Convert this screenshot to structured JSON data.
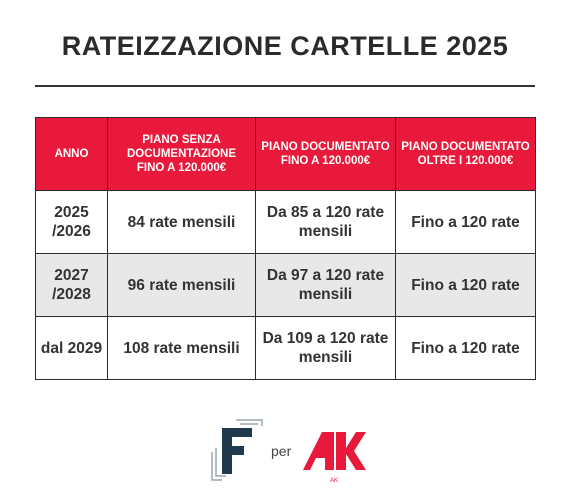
{
  "title": "RATEIZZAZIONE CARTELLE 2025",
  "table": {
    "headers": [
      "ANNO",
      "PIANO SENZA DOCUMENTAZIONE FINO A 120.000€",
      "PIANO DOCUMENTATO FINO A 120.000€",
      "PIANO DOCUMENTATO OLTRE I 120.000€"
    ],
    "rows": [
      {
        "year": "2025 /2026",
        "col1": "84 rate mensili",
        "col2": "Da 85 a 120 rate mensili",
        "col3": "Fino a 120 rate"
      },
      {
        "year": "2027 /2028",
        "col1": "96 rate mensili",
        "col2": "Da 97 a 120 rate mensili",
        "col3": "Fino a 120 rate"
      },
      {
        "year": "dal 2029",
        "col1": "108 rate mensili",
        "col2": "Da 109 a 120 rate mensili",
        "col3": "Fino a 120 rate"
      }
    ]
  },
  "footer": {
    "left_logo": "F",
    "connector": "per",
    "right_logo": "AK",
    "logo_accent": "#e8193a",
    "logo_dark": "#1f3a4d"
  }
}
